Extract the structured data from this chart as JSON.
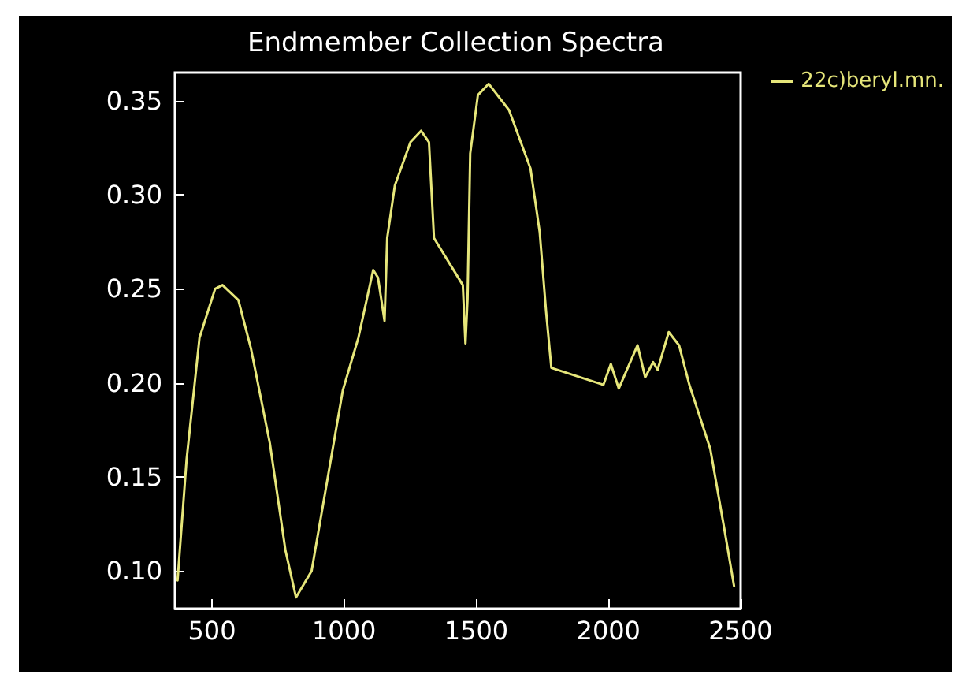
{
  "chart_data": {
    "type": "line",
    "title": "Endmember Collection Spectra",
    "x": [
      370,
      404,
      453,
      512,
      540,
      600,
      648,
      719,
      778,
      818,
      877,
      936,
      995,
      1054,
      1110,
      1128,
      1153,
      1163,
      1192,
      1251,
      1291,
      1321,
      1340,
      1449,
      1459,
      1467,
      1477,
      1506,
      1547,
      1624,
      1705,
      1740,
      1764,
      1784,
      1981,
      2009,
      2039,
      2110,
      2139,
      2169,
      2186,
      2228,
      2267,
      2306,
      2385,
      2435,
      2475
    ],
    "series": [
      {
        "name": "22c)beryl.mn.",
        "color": "#e6e67a",
        "values": [
          0.095,
          0.159,
          0.224,
          0.25,
          0.252,
          0.244,
          0.218,
          0.168,
          0.111,
          0.086,
          0.1,
          0.148,
          0.196,
          0.224,
          0.26,
          0.256,
          0.233,
          0.277,
          0.305,
          0.328,
          0.334,
          0.328,
          0.277,
          0.252,
          0.221,
          0.245,
          0.322,
          0.353,
          0.359,
          0.345,
          0.314,
          0.28,
          0.238,
          0.208,
          0.199,
          0.21,
          0.197,
          0.22,
          0.203,
          0.211,
          0.207,
          0.227,
          0.22,
          0.199,
          0.165,
          0.125,
          0.092
        ]
      }
    ],
    "xlim": [
      360,
      2500
    ],
    "xticks": [
      500,
      1000,
      1500,
      2000,
      2500
    ],
    "ylim": [
      0.08,
      0.365
    ],
    "yticks": [
      {
        "value": 0.1,
        "label": "0.10"
      },
      {
        "value": 0.15,
        "label": "0.15"
      },
      {
        "value": 0.2,
        "label": "0.20"
      },
      {
        "value": 0.25,
        "label": "0.25"
      },
      {
        "value": 0.3,
        "label": "0.30"
      },
      {
        "value": 0.35,
        "label": "0.35"
      }
    ],
    "grid": false,
    "legend": "top right",
    "marker": "none",
    "line_style": "solid"
  }
}
